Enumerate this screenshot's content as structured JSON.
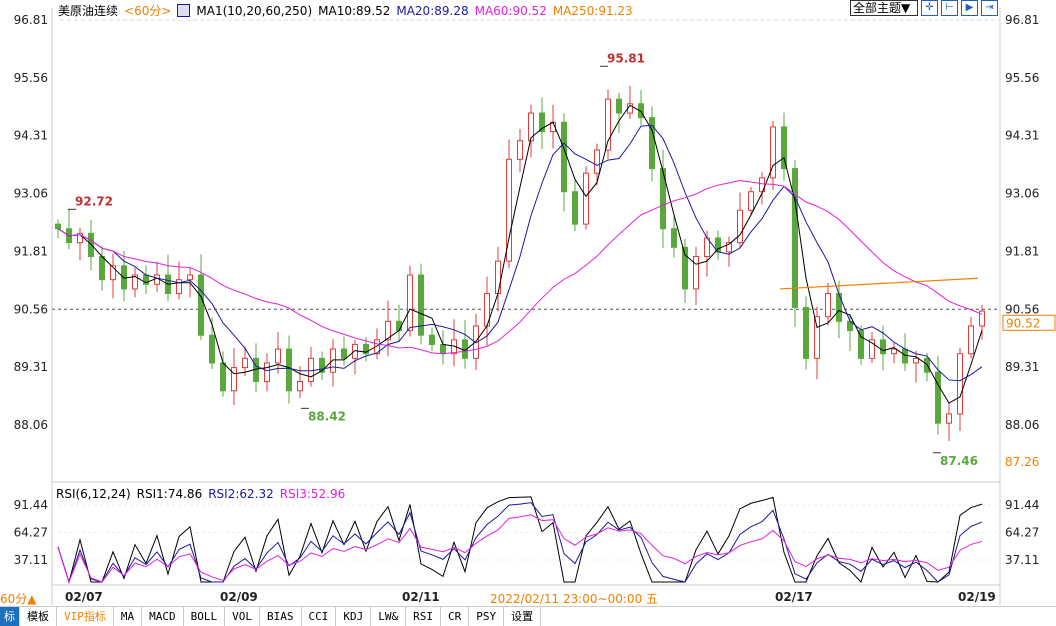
{
  "header": {
    "symbol": "美原油连续",
    "period": "<60分>",
    "indicator": "MA1(10,20,60,250)",
    "ma10": "MA10:89.52",
    "ma20": "MA20:89.28",
    "ma60": "MA60:90.52",
    "ma250": "MA250:91.23"
  },
  "toolbar": {
    "theme_label": "全部主题▼",
    "icons": [
      "crosshair-icon",
      "range-icon",
      "play-icon",
      "exit-icon"
    ]
  },
  "colors": {
    "up": "#e03c3c",
    "down": "#5aa83c",
    "ma10": "#000000",
    "ma20": "#1a1aa0",
    "ma60": "#e020e0",
    "ma250": "#f08000",
    "rsi1": "#000000",
    "rsi2": "#1a1aa0",
    "rsi3": "#e020e0"
  },
  "chart_data": {
    "type": "candlestick",
    "price_axis_ticks": [
      "96.81",
      "95.56",
      "94.31",
      "93.06",
      "91.81",
      "90.56",
      "89.31",
      "88.06"
    ],
    "price_range": [
      87.26,
      96.81
    ],
    "x_tick_labels": [
      "02/07",
      "02/09",
      "02/11",
      "02/17",
      "02/19"
    ],
    "closes": [
      92.3,
      92.0,
      92.2,
      91.7,
      91.2,
      91.5,
      91.0,
      91.3,
      91.1,
      91.3,
      90.9,
      91.2,
      91.3,
      90.0,
      89.4,
      88.8,
      89.3,
      89.5,
      89.0,
      89.4,
      89.7,
      88.8,
      89.0,
      89.5,
      89.2,
      89.7,
      89.5,
      89.8,
      89.6,
      89.9,
      90.3,
      90.1,
      91.3,
      90.0,
      89.8,
      89.6,
      89.9,
      89.5,
      90.2,
      90.9,
      91.6,
      93.8,
      94.2,
      94.8,
      94.4,
      94.6,
      93.1,
      92.4,
      93.5,
      94.0,
      95.1,
      94.8,
      95.0,
      94.7,
      93.6,
      92.3,
      91.9,
      91.0,
      91.7,
      92.1,
      91.8,
      92.0,
      92.7,
      93.1,
      93.4,
      94.5,
      93.6,
      90.6,
      89.5,
      90.4,
      90.9,
      90.3,
      90.1,
      89.5,
      89.9,
      89.6,
      89.7,
      89.4,
      89.5,
      89.2,
      88.1,
      88.3,
      89.6,
      90.2,
      90.52
    ],
    "annotations": [
      {
        "text": "92.72",
        "value": 92.72,
        "type": "high"
      },
      {
        "text": "95.81",
        "value": 95.81,
        "type": "high"
      },
      {
        "text": "88.42",
        "value": 88.42,
        "type": "low"
      },
      {
        "text": "87.46",
        "value": 87.46,
        "type": "low"
      }
    ],
    "last_price": "90.52",
    "axis_bottom": "87.26",
    "ma250_value": 91.23,
    "rsi": {
      "label": "RSI(6,12,24)",
      "rsi1": "RSI1:74.86",
      "rsi2": "RSI2:62.32",
      "rsi3": "RSI3:52.96",
      "ticks": [
        "91.44",
        "64.27",
        "37.11"
      ]
    }
  },
  "footer": {
    "period": "60分▲",
    "crosshair_time": "2022/02/11 23:00~00:00 五",
    "tabs": [
      "标",
      "模板",
      "VIP指标",
      "MA",
      "MACD",
      "BOLL",
      "VOL",
      "BIAS",
      "CCI",
      "KDJ",
      "LW&",
      "RSI",
      "CR",
      "PSY",
      "设置"
    ]
  }
}
